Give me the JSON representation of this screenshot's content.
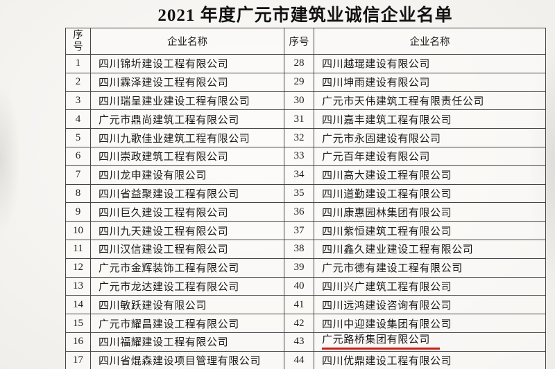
{
  "document": {
    "title": "2021 年度广元市建筑业诚信企业名单"
  },
  "table": {
    "headers": [
      "序号",
      "企业名称",
      "序号",
      "企业名称"
    ],
    "rows": [
      {
        "l_no": "1",
        "l_name": "四川锦圻建设工程有限公司",
        "r_no": "28",
        "r_name": "四川越琨建设有限公司",
        "r_underline": false
      },
      {
        "l_no": "2",
        "l_name": "四川霖泽建设工程有限公司",
        "r_no": "29",
        "r_name": "四川坤雨建设有限公司",
        "r_underline": false
      },
      {
        "l_no": "3",
        "l_name": "四川瑞呈建业建设工程有限公司",
        "r_no": "30",
        "r_name": "广元市天伟建筑工程有限责任公司",
        "r_underline": false
      },
      {
        "l_no": "4",
        "l_name": "广元市鼎尚建筑工程有限公司",
        "r_no": "31",
        "r_name": "四川嘉丰建筑工程有限公司",
        "r_underline": false
      },
      {
        "l_no": "5",
        "l_name": "四川九歌佳业建筑工程有限公司",
        "r_no": "32",
        "r_name": "广元市永固建设有限公司",
        "r_underline": false
      },
      {
        "l_no": "6",
        "l_name": "四川崇政建筑工程有限公司",
        "r_no": "33",
        "r_name": "广元百年建设有限公司",
        "r_underline": false
      },
      {
        "l_no": "7",
        "l_name": "四川龙申建设有限公司",
        "r_no": "34",
        "r_name": "四川高大建设工程有限公司",
        "r_underline": false
      },
      {
        "l_no": "8",
        "l_name": "四川省益聚建设工程有限公司",
        "r_no": "35",
        "r_name": "四川道勤建设工程有限公司",
        "r_underline": false
      },
      {
        "l_no": "9",
        "l_name": "四川巨久建设工程有限公司",
        "r_no": "36",
        "r_name": "四川康惠园林集团有限公司",
        "r_underline": false
      },
      {
        "l_no": "10",
        "l_name": "四川九天建设工程有限公司",
        "r_no": "37",
        "r_name": "四川紫恒建筑工程有限公司",
        "r_underline": false
      },
      {
        "l_no": "11",
        "l_name": "四川汉信建设工程有限公司",
        "r_no": "38",
        "r_name": "四川鑫久建业建设工程有限公司",
        "r_underline": false
      },
      {
        "l_no": "12",
        "l_name": "广元市金辉装饰工程有限公司",
        "r_no": "39",
        "r_name": "广元市德有建设工程有限公司",
        "r_underline": false
      },
      {
        "l_no": "13",
        "l_name": "广元市龙达建设工程有限公司",
        "r_no": "40",
        "r_name": "四川兴广建筑工程有限公司",
        "r_underline": false
      },
      {
        "l_no": "14",
        "l_name": "四川敏跃建设有限公司",
        "r_no": "41",
        "r_name": "四川远鸿建设咨询有限公司",
        "r_underline": false
      },
      {
        "l_no": "15",
        "l_name": "广元市耀昌建设工程有限公司",
        "r_no": "42",
        "r_name": "四川中迎建设集团有限公司",
        "r_underline": false
      },
      {
        "l_no": "16",
        "l_name": "四川福耀建设工程有限公司",
        "r_no": "43",
        "r_name": "广元路桥集团有限公司",
        "r_underline": true
      },
      {
        "l_no": "17",
        "l_name": "四川省焜森建设项目管理有限公司",
        "r_no": "44",
        "r_name": "四川优鼎建设工程有限公司",
        "r_underline": false
      }
    ],
    "highlight": {
      "row_no": "43",
      "company": "广元路桥集团有限公司",
      "underline_color": "#c62015"
    }
  }
}
